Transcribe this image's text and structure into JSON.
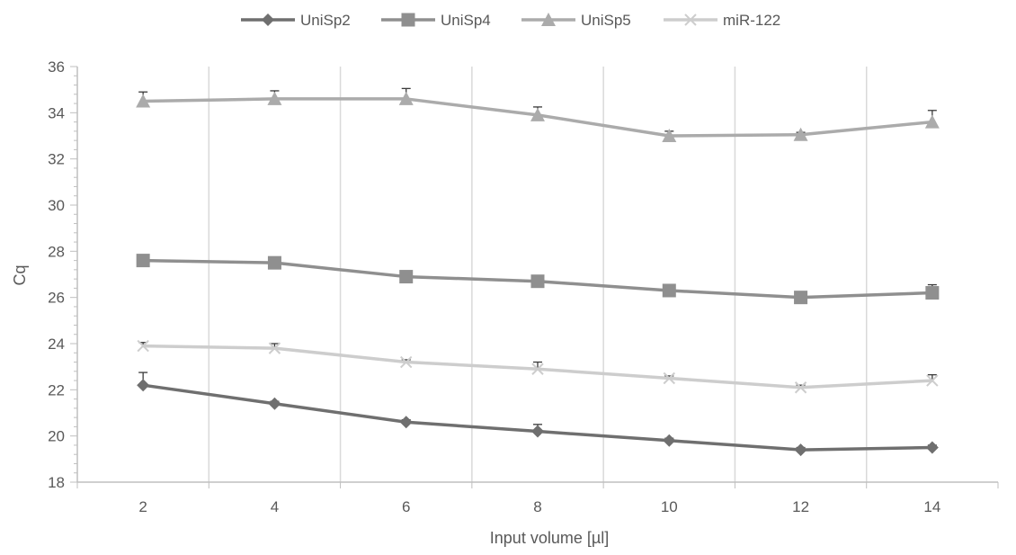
{
  "chart_data": {
    "type": "line",
    "title": "",
    "xlabel": "Input volume [µl]",
    "ylabel": "Cq",
    "x": [
      2,
      4,
      6,
      8,
      10,
      12,
      14
    ],
    "x_tick_labels": [
      "2",
      "4",
      "6",
      "8",
      "10",
      "12",
      "14"
    ],
    "ylim": [
      18,
      36
    ],
    "y_ticks": [
      18,
      20,
      22,
      24,
      26,
      28,
      30,
      32,
      34,
      36
    ],
    "grid": "vertical",
    "legend_position": "top",
    "series": [
      {
        "name": "UniSp2",
        "marker": "diamond",
        "color": "#6f6f6f",
        "values": [
          22.2,
          21.4,
          20.6,
          20.2,
          19.8,
          19.4,
          19.5
        ],
        "error_plus": [
          0.55,
          0.1,
          0.1,
          0.3,
          0.1,
          0.1,
          0.1
        ]
      },
      {
        "name": "UniSp4",
        "marker": "square",
        "color": "#8f8f8f",
        "values": [
          27.6,
          27.5,
          26.9,
          26.7,
          26.3,
          26.0,
          26.2
        ],
        "error_plus": [
          0.1,
          0.1,
          0.1,
          0.1,
          0.1,
          0.1,
          0.35
        ]
      },
      {
        "name": "UniSp5",
        "marker": "triangle",
        "color": "#ababab",
        "values": [
          34.5,
          34.6,
          34.6,
          33.9,
          33.0,
          33.05,
          33.6
        ],
        "error_plus": [
          0.4,
          0.35,
          0.45,
          0.35,
          0.2,
          0.1,
          0.5
        ]
      },
      {
        "name": "miR-122",
        "marker": "x",
        "color": "#cdcdcd",
        "values": [
          23.9,
          23.8,
          23.2,
          22.9,
          22.5,
          22.1,
          22.4
        ],
        "error_plus": [
          0.15,
          0.2,
          0.1,
          0.3,
          0.1,
          0.1,
          0.25
        ]
      }
    ]
  }
}
